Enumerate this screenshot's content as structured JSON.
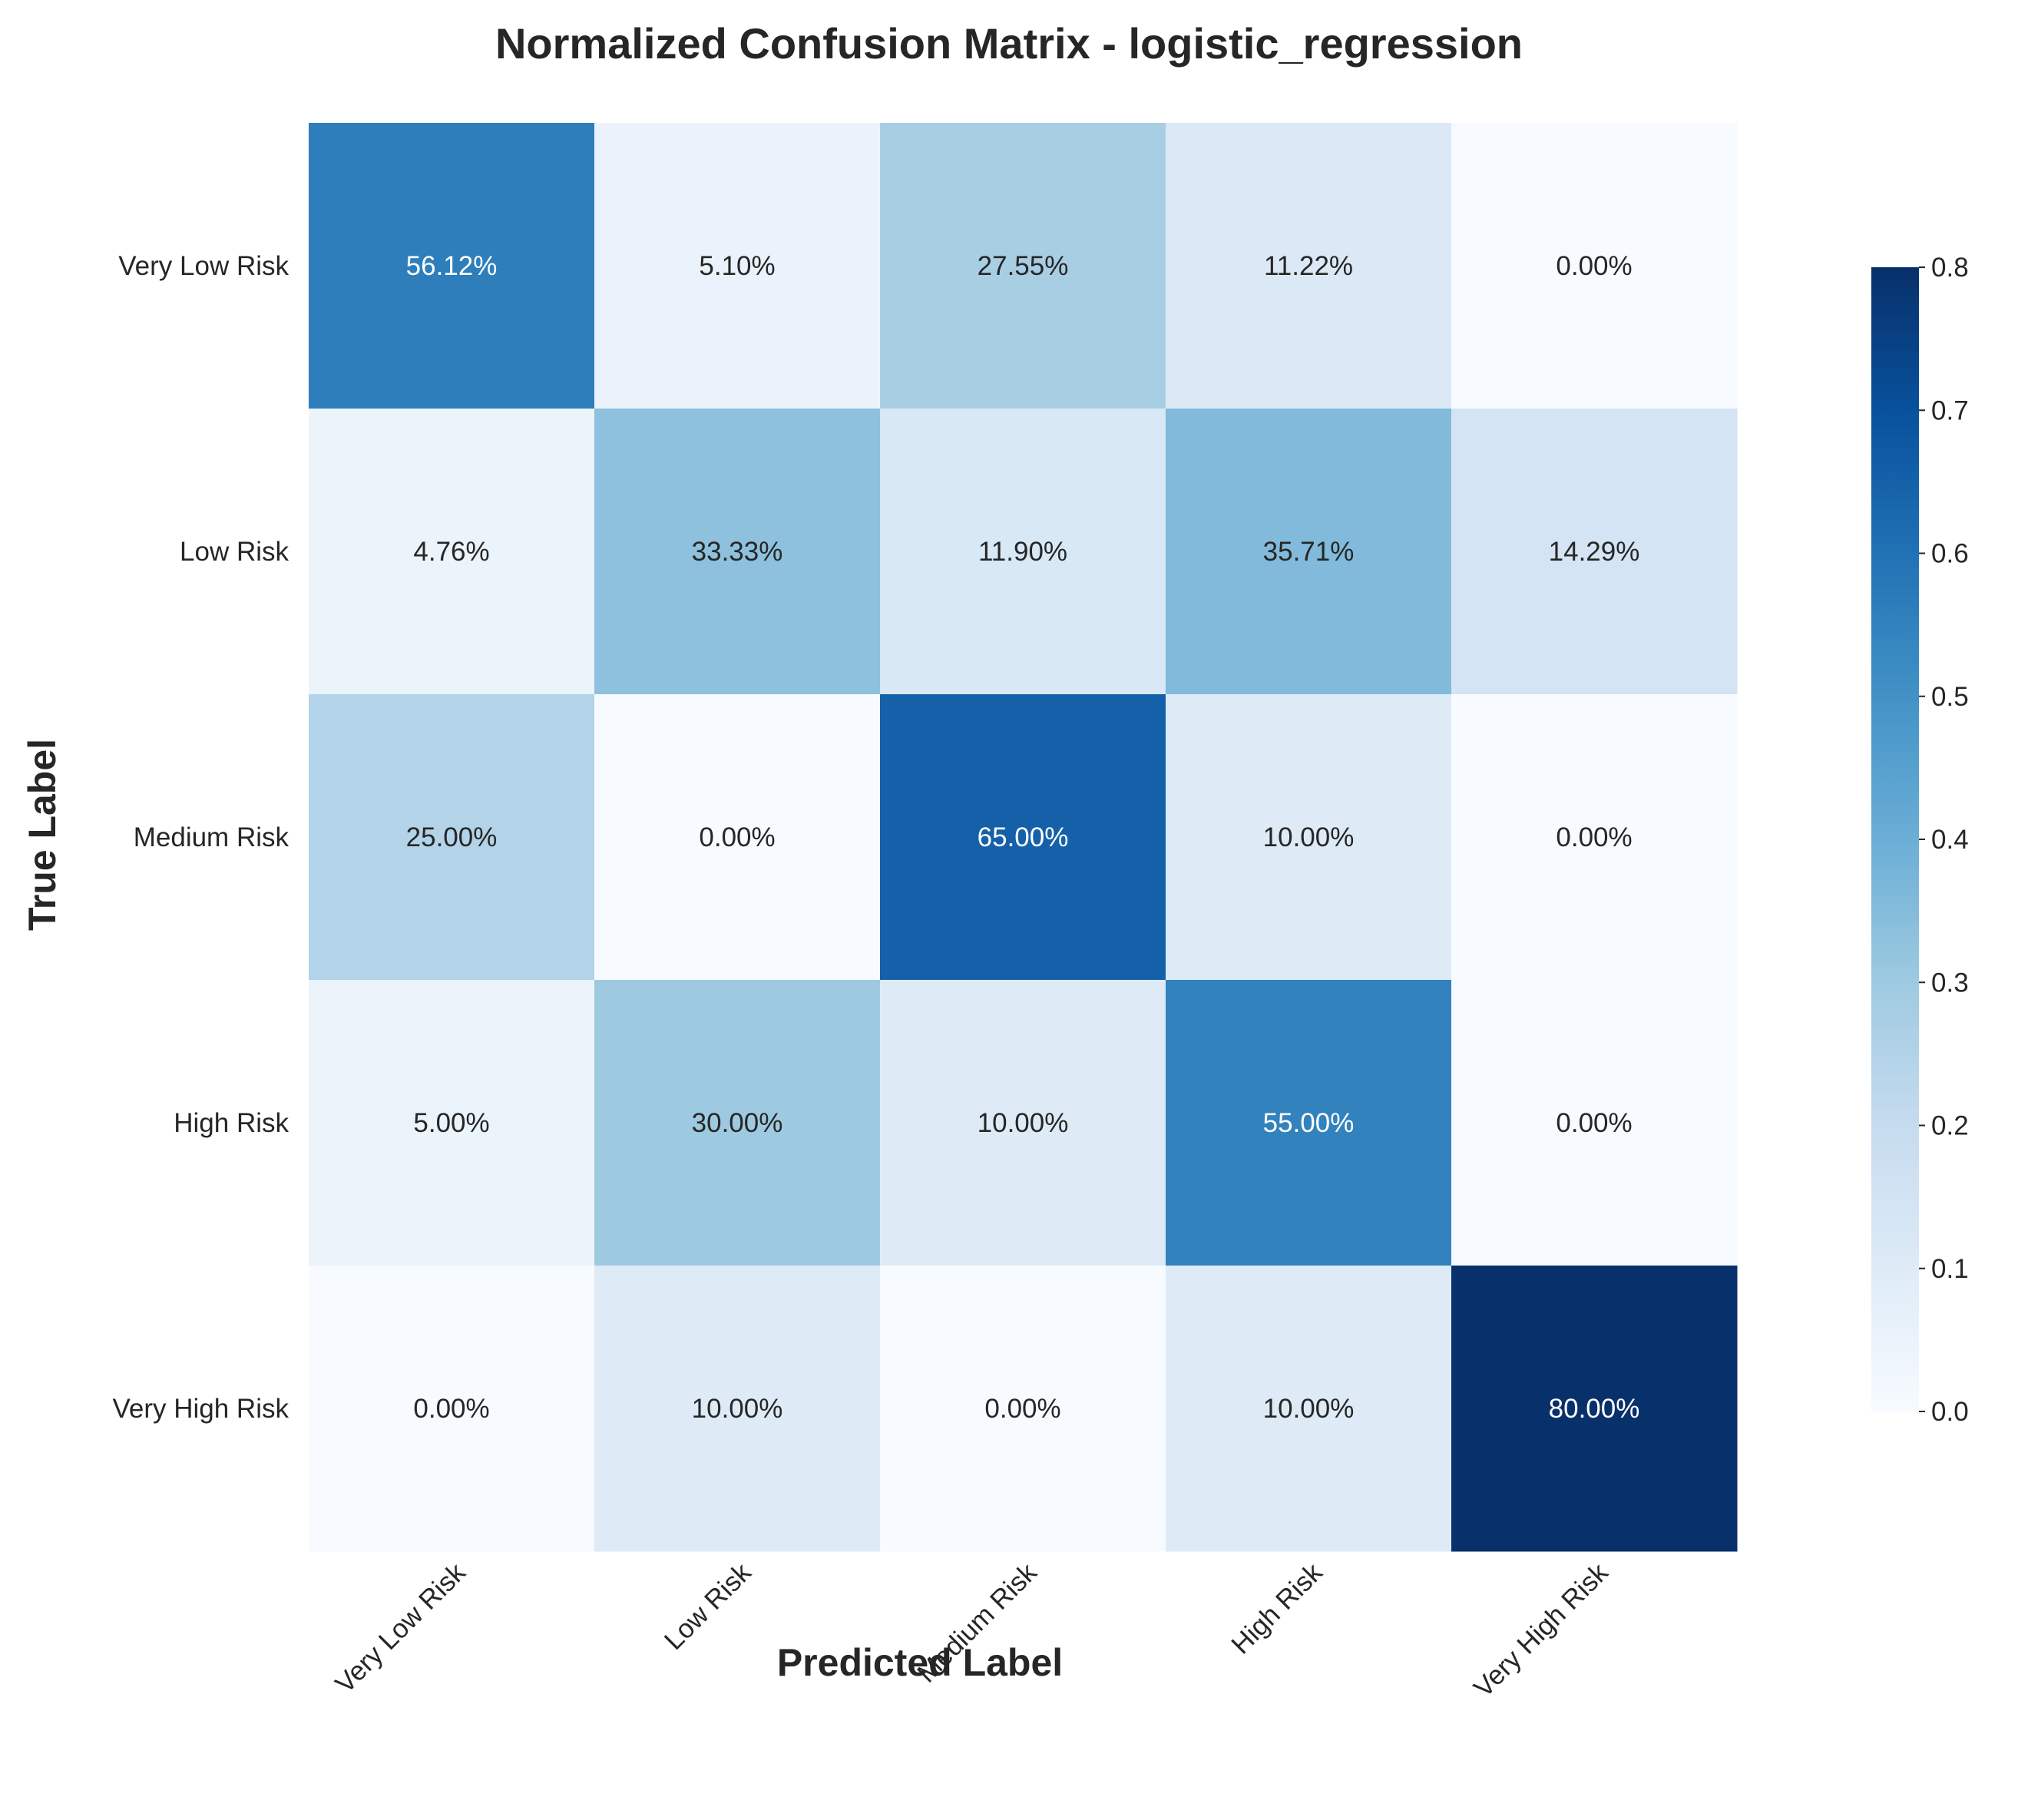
{
  "chart_data": {
    "type": "heatmap",
    "title": "Normalized Confusion Matrix - logistic_regression",
    "xlabel": "Predicted Label",
    "ylabel": "True Label",
    "x_categories": [
      "Very Low Risk",
      "Low Risk",
      "Medium Risk",
      "High Risk",
      "Very High Risk"
    ],
    "y_categories": [
      "Very Low Risk",
      "Low Risk",
      "Medium Risk",
      "High Risk",
      "Very High Risk"
    ],
    "values": [
      [
        0.5612,
        0.051,
        0.2755,
        0.1122,
        0.0
      ],
      [
        0.0476,
        0.3333,
        0.119,
        0.3571,
        0.1429
      ],
      [
        0.25,
        0.0,
        0.65,
        0.1,
        0.0
      ],
      [
        0.05,
        0.3,
        0.1,
        0.55,
        0.0
      ],
      [
        0.0,
        0.1,
        0.0,
        0.1,
        0.8
      ]
    ],
    "cell_labels": [
      [
        "56.12%",
        "5.10%",
        "27.55%",
        "11.22%",
        "0.00%"
      ],
      [
        "4.76%",
        "33.33%",
        "11.90%",
        "35.71%",
        "14.29%"
      ],
      [
        "25.00%",
        "0.00%",
        "65.00%",
        "10.00%",
        "0.00%"
      ],
      [
        "5.00%",
        "30.00%",
        "10.00%",
        "55.00%",
        "0.00%"
      ],
      [
        "0.00%",
        "10.00%",
        "0.00%",
        "10.00%",
        "80.00%"
      ]
    ],
    "colormap": "Blues",
    "vmin": 0.0,
    "vmax": 0.8,
    "colorbar_ticks": [
      "0.0",
      "0.1",
      "0.2",
      "0.3",
      "0.4",
      "0.5",
      "0.6",
      "0.7",
      "0.8"
    ],
    "grid": false
  }
}
